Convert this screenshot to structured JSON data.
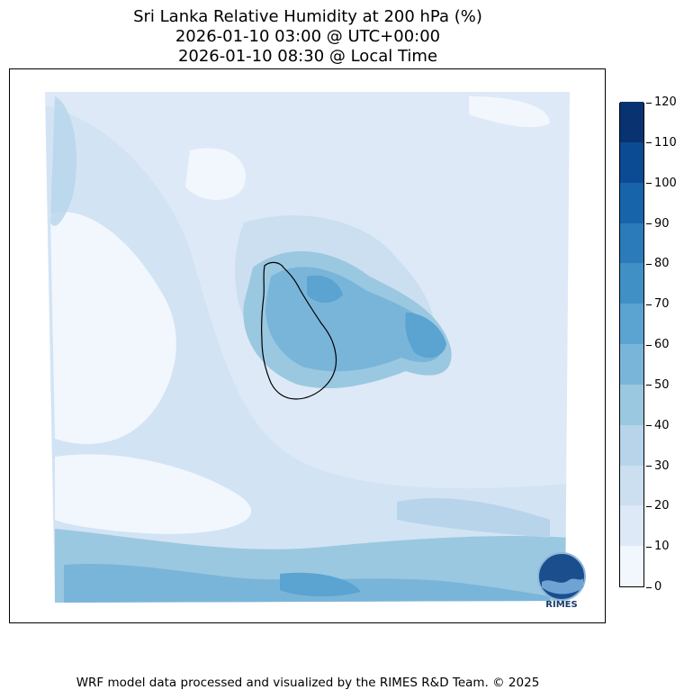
{
  "header": {
    "title_line1": "Sri Lanka Relative Humidity at 200 hPa (%)",
    "title_line2": "2026-01-10 03:00 @ UTC+00:00",
    "title_line3": "2026-01-10 08:30 @ Local Time"
  },
  "colorbar": {
    "ticks": [
      "0",
      "10",
      "20",
      "30",
      "40",
      "50",
      "60",
      "70",
      "80",
      "90",
      "100",
      "110",
      "120"
    ],
    "colors": [
      "#f1f7fd",
      "#dde9f7",
      "#cbdff1",
      "#b7d4ea",
      "#9ac8e0",
      "#79b5d9",
      "#5ba3d0",
      "#4090c5",
      "#2b7bba",
      "#1864aa",
      "#0a4b94",
      "#083370"
    ]
  },
  "footer": {
    "credit": "WRF model data processed and visualized by the RIMES R&D Team. © 2025"
  },
  "logo": {
    "text": "RIMES",
    "icon": "rimes-globe-logo-icon"
  }
}
